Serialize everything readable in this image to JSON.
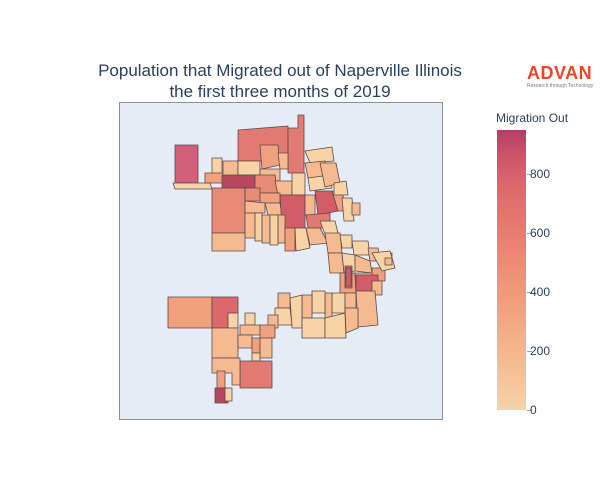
{
  "title": {
    "line1": "Population that Migrated out of Naperville Illinois",
    "line2": "the first three months of 2019"
  },
  "logo": {
    "word": "ADVAN",
    "tagline": "Research through Technology",
    "color": "#e8472b"
  },
  "colorbar": {
    "title": "Migration Out",
    "ticks": [
      {
        "label": "800",
        "value": 800
      },
      {
        "label": "600",
        "value": 600
      },
      {
        "label": "400",
        "value": 400
      },
      {
        "label": "200",
        "value": 200
      },
      {
        "label": "0",
        "value": 0
      }
    ],
    "min": 0,
    "max": 950,
    "colorscale": [
      "#f6d2a9",
      "#f5b78e",
      "#f19c7c",
      "#ea8171",
      "#dd686c",
      "#ca5268",
      "#b13f64"
    ]
  },
  "map": {
    "background": "#e5ecf6",
    "border_color": "#5b4a4a"
  }
}
